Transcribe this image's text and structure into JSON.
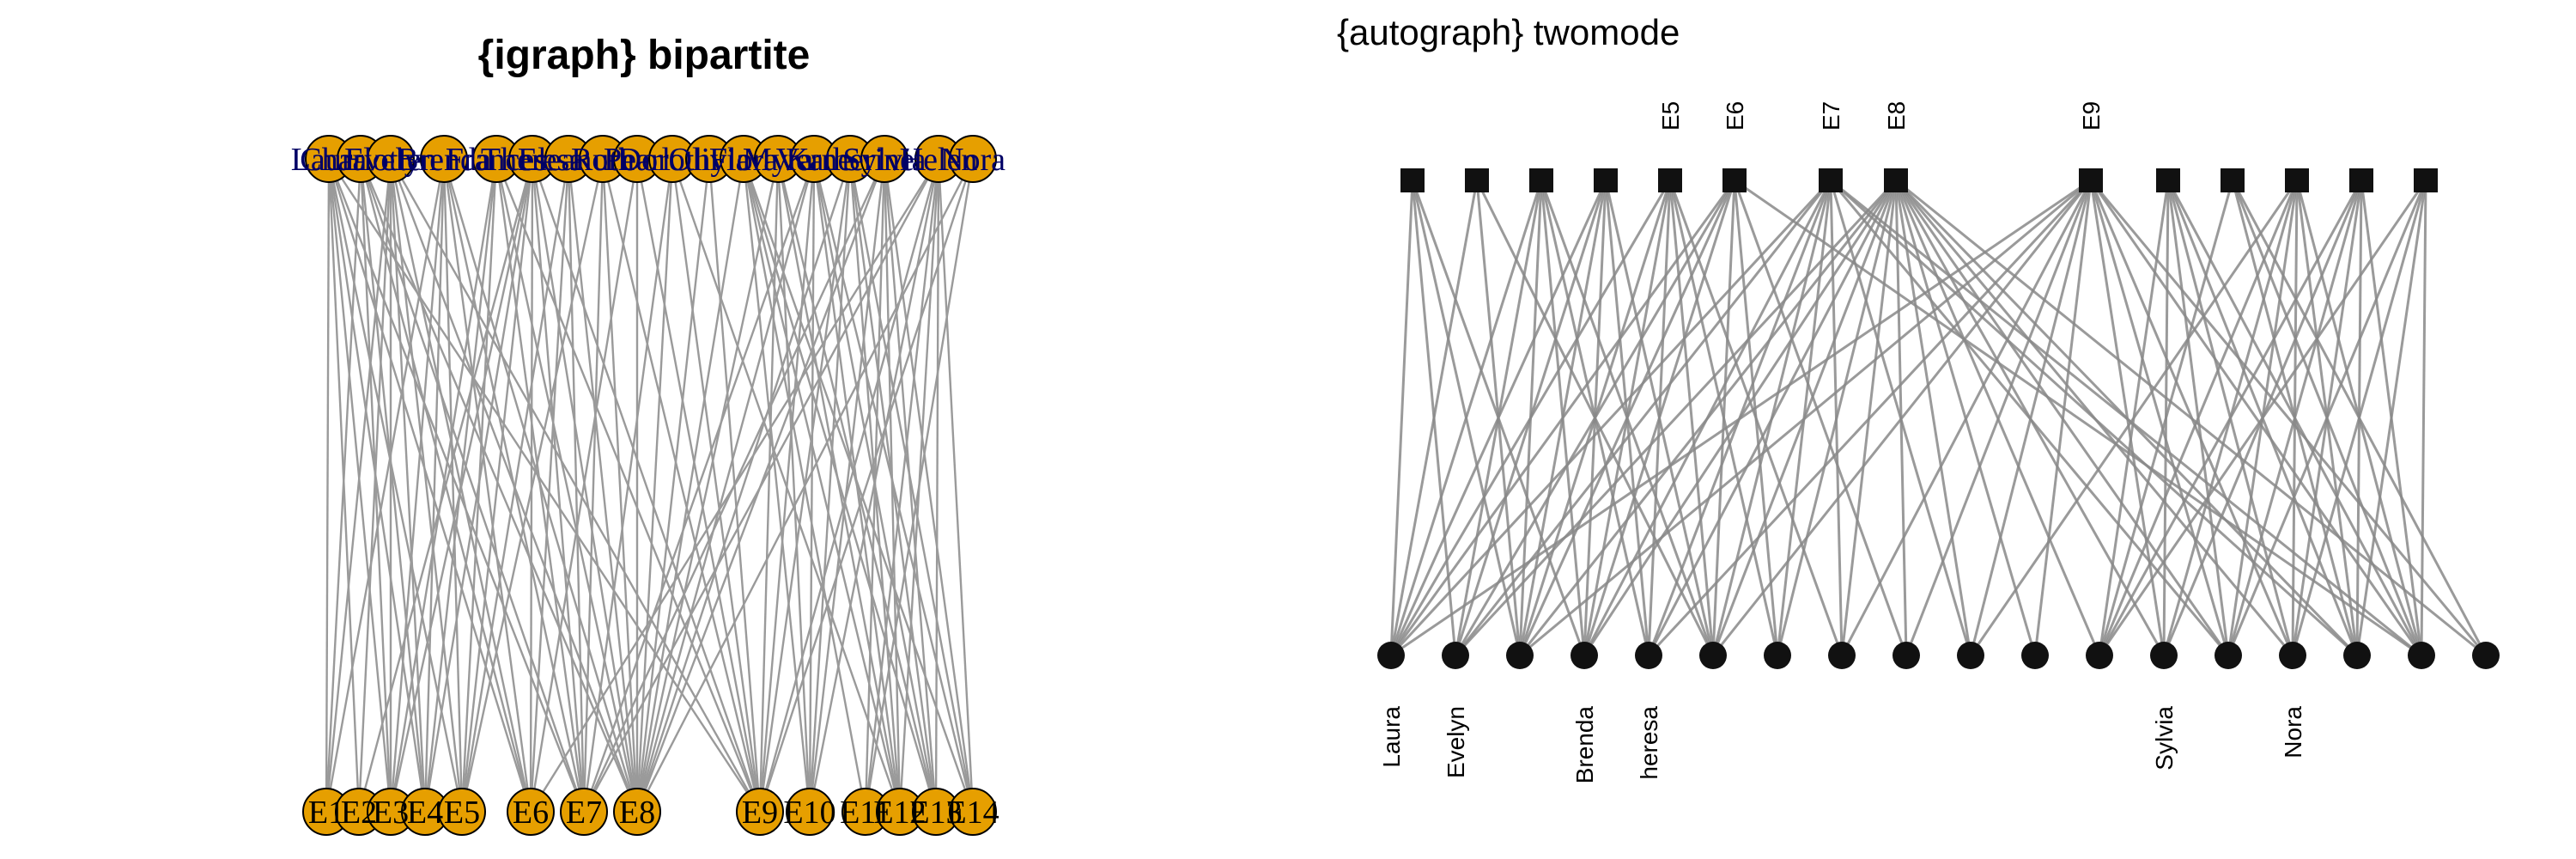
{
  "left": {
    "title": "{igraph} bipartite",
    "women": [
      "Laura",
      "Charlotte",
      "Evelyn",
      "Brenda",
      "Frances",
      "Theresa",
      "Eleanor",
      "Ruth",
      "Pearl",
      "Dorothy",
      "Olivia",
      "Flora",
      "Myra",
      "Verne",
      "Katherine",
      "Sylvia",
      "Helen",
      "Nora"
    ],
    "events": [
      "E1",
      "E2",
      "E3",
      "E4",
      "E5",
      "E6",
      "E7",
      "E8",
      "E9",
      "E10",
      "E11",
      "E12",
      "E13",
      "E14"
    ],
    "node_fill": "#E69F00",
    "women_label_color": "#000066",
    "edge_color": "#9a9a9a"
  },
  "right": {
    "title": "{autograph} twomode",
    "event_labels": [
      "",
      "",
      "",
      "",
      "E5",
      "E6",
      "E7",
      "E8",
      "E9",
      "",
      "",
      "",
      "",
      ""
    ],
    "women_labels": [
      "Laura",
      "Evelyn",
      "",
      "Brenda",
      "heresa",
      "",
      "",
      "",
      "",
      "",
      "",
      "",
      "Sylvia",
      "",
      "Nora",
      "",
      "",
      ""
    ],
    "node_color": "#111111",
    "edge_color": "#888888"
  },
  "edges": [
    [
      0,
      0
    ],
    [
      0,
      1
    ],
    [
      0,
      2
    ],
    [
      0,
      3
    ],
    [
      0,
      4
    ],
    [
      0,
      5
    ],
    [
      0,
      6
    ],
    [
      0,
      8
    ],
    [
      1,
      0
    ],
    [
      1,
      2
    ],
    [
      1,
      3
    ],
    [
      1,
      5
    ],
    [
      1,
      6
    ],
    [
      1,
      7
    ],
    [
      2,
      0
    ],
    [
      2,
      1
    ],
    [
      2,
      2
    ],
    [
      2,
      3
    ],
    [
      2,
      4
    ],
    [
      2,
      5
    ],
    [
      2,
      7
    ],
    [
      2,
      8
    ],
    [
      3,
      0
    ],
    [
      3,
      2
    ],
    [
      3,
      3
    ],
    [
      3,
      4
    ],
    [
      3,
      5
    ],
    [
      3,
      6
    ],
    [
      3,
      7
    ],
    [
      4,
      2
    ],
    [
      4,
      3
    ],
    [
      4,
      4
    ],
    [
      4,
      6
    ],
    [
      4,
      7
    ],
    [
      4,
      8
    ],
    [
      5,
      1
    ],
    [
      5,
      2
    ],
    [
      5,
      3
    ],
    [
      5,
      4
    ],
    [
      5,
      5
    ],
    [
      5,
      6
    ],
    [
      5,
      7
    ],
    [
      5,
      8
    ],
    [
      6,
      4
    ],
    [
      6,
      5
    ],
    [
      6,
      6
    ],
    [
      6,
      7
    ],
    [
      7,
      4
    ],
    [
      7,
      6
    ],
    [
      7,
      7
    ],
    [
      7,
      8
    ],
    [
      8,
      5
    ],
    [
      8,
      7
    ],
    [
      8,
      8
    ],
    [
      9,
      6
    ],
    [
      9,
      7
    ],
    [
      9,
      8
    ],
    [
      9,
      11
    ],
    [
      10,
      7
    ],
    [
      10,
      8
    ],
    [
      11,
      7
    ],
    [
      11,
      9
    ],
    [
      11,
      10
    ],
    [
      11,
      11
    ],
    [
      11,
      12
    ],
    [
      11,
      13
    ],
    [
      12,
      7
    ],
    [
      12,
      8
    ],
    [
      12,
      9
    ],
    [
      12,
      11
    ],
    [
      12,
      12
    ],
    [
      13,
      6
    ],
    [
      13,
      7
    ],
    [
      13,
      8
    ],
    [
      13,
      9
    ],
    [
      13,
      11
    ],
    [
      13,
      12
    ],
    [
      13,
      13
    ],
    [
      14,
      7
    ],
    [
      14,
      8
    ],
    [
      14,
      9
    ],
    [
      14,
      11
    ],
    [
      14,
      12
    ],
    [
      14,
      13
    ],
    [
      15,
      6
    ],
    [
      15,
      7
    ],
    [
      15,
      9
    ],
    [
      15,
      10
    ],
    [
      15,
      11
    ],
    [
      15,
      12
    ],
    [
      15,
      13
    ],
    [
      16,
      5
    ],
    [
      16,
      6
    ],
    [
      16,
      8
    ],
    [
      16,
      9
    ],
    [
      16,
      10
    ],
    [
      16,
      11
    ],
    [
      16,
      12
    ],
    [
      16,
      13
    ],
    [
      17,
      7
    ],
    [
      17,
      8
    ],
    [
      17,
      10
    ]
  ]
}
